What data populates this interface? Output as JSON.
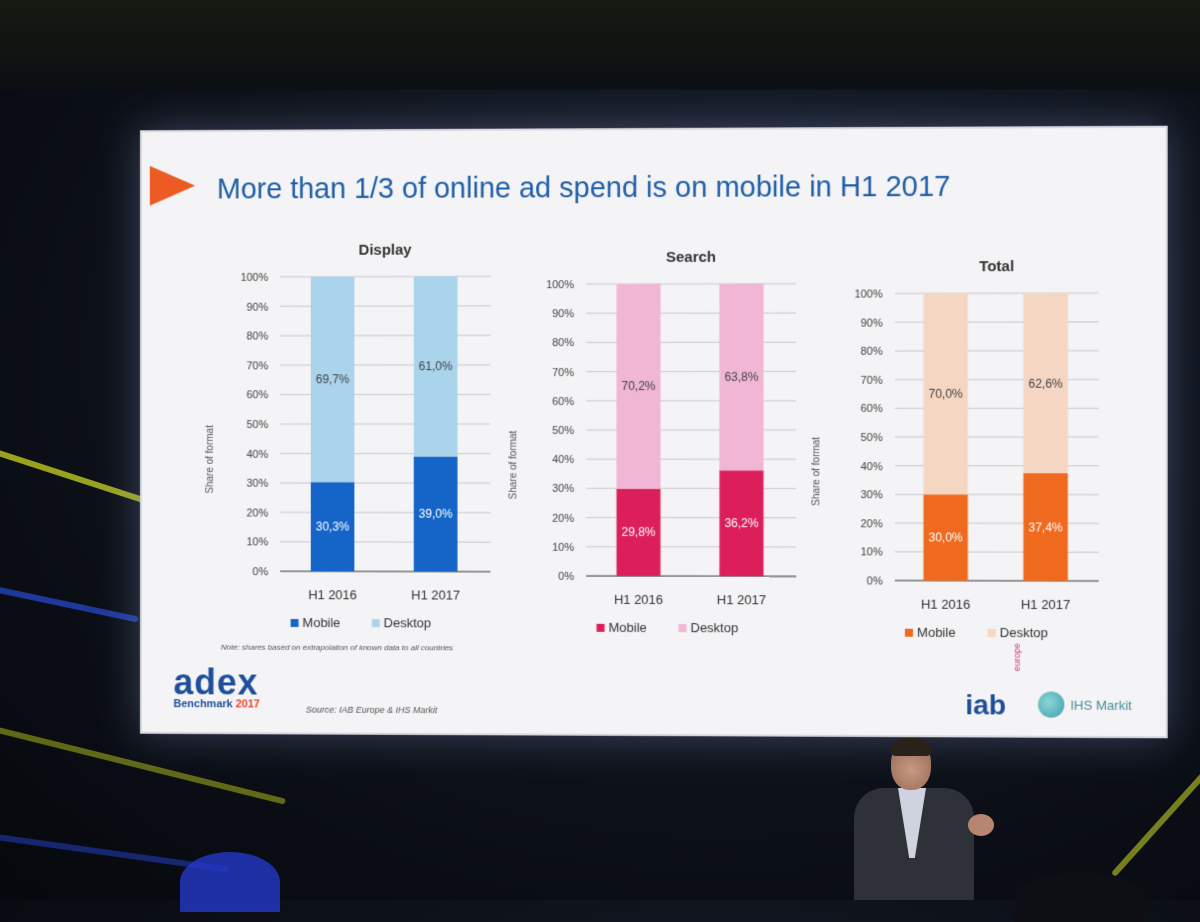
{
  "slide": {
    "title": "More than 1/3 of online ad spend is on mobile in H1 2017",
    "note": "Note: shares based on extrapolation of known data to all countries",
    "source": "Source: IAB Europe & IHS Markit",
    "logos": {
      "adex": "adex",
      "adex_sub": "Benchmark",
      "adex_year": "2017",
      "iab": "iab",
      "iab_tag": "europe",
      "ihs": "IHS Markit"
    }
  },
  "colors": {
    "display_mobile": "#1565c8",
    "display_desktop": "#a9d4ec",
    "search_mobile": "#dc1f5a",
    "search_desktop": "#f0b6d4",
    "total_mobile": "#ef6a1f",
    "total_desktop": "#f5d6c2"
  },
  "chart_data": [
    {
      "type": "bar",
      "stacked": true,
      "title": "Display",
      "ylabel": "Share of format",
      "categories": [
        "H1 2016",
        "H1 2017"
      ],
      "ylim": [
        0,
        100
      ],
      "yticks": [
        "0%",
        "10%",
        "20%",
        "30%",
        "40%",
        "50%",
        "60%",
        "70%",
        "80%",
        "90%",
        "100%"
      ],
      "series": [
        {
          "name": "Mobile",
          "values": [
            30.3,
            39.0
          ],
          "labels": [
            "30,3%",
            "39,0%"
          ],
          "color": "#1565c8"
        },
        {
          "name": "Desktop",
          "values": [
            69.7,
            61.0
          ],
          "labels": [
            "69,7%",
            "61,0%"
          ],
          "color": "#a9d4ec"
        }
      ],
      "legend": "bottom"
    },
    {
      "type": "bar",
      "stacked": true,
      "title": "Search",
      "ylabel": "Share of format",
      "categories": [
        "H1 2016",
        "H1 2017"
      ],
      "ylim": [
        0,
        100
      ],
      "yticks": [
        "0%",
        "10%",
        "20%",
        "30%",
        "40%",
        "50%",
        "60%",
        "70%",
        "80%",
        "90%",
        "100%"
      ],
      "series": [
        {
          "name": "Mobile",
          "values": [
            29.8,
            36.2
          ],
          "labels": [
            "29,8%",
            "36,2%"
          ],
          "color": "#dc1f5a"
        },
        {
          "name": "Desktop",
          "values": [
            70.2,
            63.8
          ],
          "labels": [
            "70,2%",
            "63,8%"
          ],
          "color": "#f0b6d4"
        }
      ],
      "legend": "bottom"
    },
    {
      "type": "bar",
      "stacked": true,
      "title": "Total",
      "ylabel": "Share of format",
      "categories": [
        "H1 2016",
        "H1 2017"
      ],
      "ylim": [
        0,
        100
      ],
      "yticks": [
        "0%",
        "10%",
        "20%",
        "30%",
        "40%",
        "50%",
        "60%",
        "70%",
        "80%",
        "90%",
        "100%"
      ],
      "series": [
        {
          "name": "Mobile",
          "values": [
            30.0,
            37.4
          ],
          "labels": [
            "30,0%",
            "37,4%"
          ],
          "color": "#ef6a1f"
        },
        {
          "name": "Desktop",
          "values": [
            70.0,
            62.6
          ],
          "labels": [
            "70,0%",
            "62,6%"
          ],
          "color": "#f5d6c2"
        }
      ],
      "legend": "bottom"
    }
  ]
}
